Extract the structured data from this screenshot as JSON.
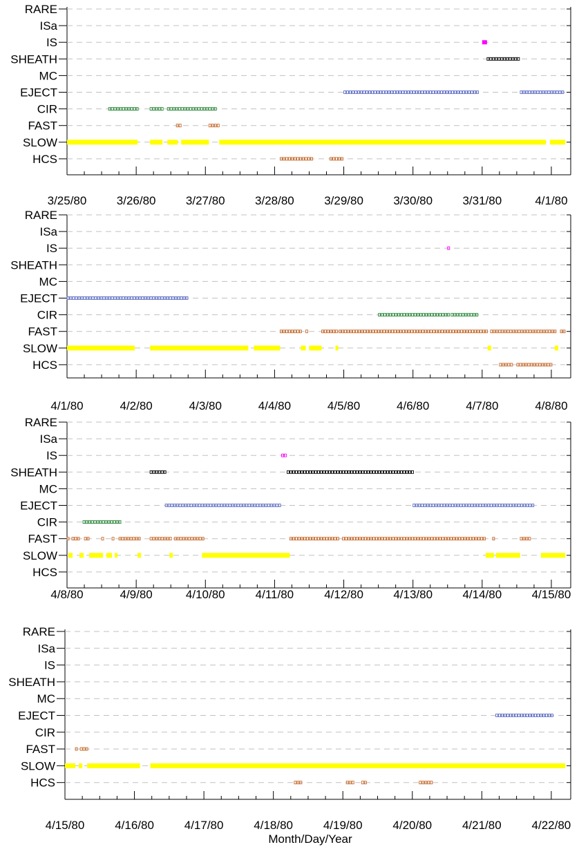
{
  "chart_data": {
    "type": "event-timeline",
    "xlabel": "Month/Day/Year",
    "categories": [
      "RARE",
      "ISa",
      "IS",
      "SHEATH",
      "MC",
      "EJECT",
      "CIR",
      "FAST",
      "SLOW",
      "HCS"
    ],
    "colors": {
      "RARE": "#000000",
      "ISa": "#000000",
      "IS": "#ff00ff",
      "SHEATH": "#000000",
      "MC": "#000000",
      "EJECT": "#6070c8",
      "CIR": "#2a8a3a",
      "FAST": "#c86a2a",
      "SLOW": "#ffff00",
      "HCS": "#c86a2a"
    },
    "grid": "dashed horizontal",
    "panels": [
      {
        "x_ticks": [
          "3/25/80",
          "3/26/80",
          "3/27/80",
          "3/28/80",
          "3/29/80",
          "3/30/80",
          "3/31/80",
          "4/1/80"
        ],
        "day_range": [
          0,
          7.2
        ],
        "events": [
          {
            "category": "IS",
            "intervals": [
              [
                6.0,
                6.07
              ]
            ]
          },
          {
            "category": "SHEATH",
            "intervals": [
              [
                6.07,
                6.55
              ]
            ]
          },
          {
            "category": "EJECT",
            "intervals": [
              [
                4.0,
                5.97
              ],
              [
                6.55,
                7.2
              ]
            ]
          },
          {
            "category": "CIR",
            "intervals": [
              [
                0.6,
                1.02
              ],
              [
                1.2,
                1.38
              ],
              [
                1.45,
                2.15
              ]
            ]
          },
          {
            "category": "FAST",
            "intervals": [
              [
                1.58,
                1.66
              ],
              [
                2.05,
                2.22
              ]
            ]
          },
          {
            "category": "SLOW",
            "intervals": [
              [
                0.0,
                1.02
              ],
              [
                1.2,
                1.38
              ],
              [
                1.45,
                1.6
              ],
              [
                1.65,
                2.05
              ],
              [
                2.2,
                6.92
              ],
              [
                6.98,
                7.2
              ]
            ]
          },
          {
            "category": "HCS",
            "intervals": [
              [
                3.08,
                3.57
              ],
              [
                3.8,
                4.0
              ]
            ]
          }
        ]
      },
      {
        "x_ticks": [
          "4/1/80",
          "4/2/80",
          "4/3/80",
          "4/4/80",
          "4/5/80",
          "4/6/80",
          "4/7/80",
          "4/8/80"
        ],
        "day_range": [
          0,
          7.2
        ],
        "events": [
          {
            "category": "IS",
            "intervals": [
              [
                5.5,
                5.55
              ]
            ]
          },
          {
            "category": "EJECT",
            "intervals": [
              [
                0.0,
                1.75
              ]
            ]
          },
          {
            "category": "CIR",
            "intervals": [
              [
                4.5,
                5.52
              ],
              [
                5.55,
                5.95
              ]
            ]
          },
          {
            "category": "FAST",
            "intervals": [
              [
                3.08,
                3.38
              ],
              [
                3.45,
                3.5
              ],
              [
                3.68,
                3.9
              ],
              [
                3.93,
                6.1
              ],
              [
                6.12,
                7.08
              ],
              [
                7.13,
                7.2
              ]
            ]
          },
          {
            "category": "SLOW",
            "intervals": [
              [
                0.0,
                0.98
              ],
              [
                1.2,
                2.62
              ],
              [
                2.7,
                3.08
              ],
              [
                3.38,
                3.45
              ],
              [
                3.5,
                3.68
              ],
              [
                3.88,
                3.92
              ],
              [
                6.08,
                6.13
              ],
              [
                7.05,
                7.1
              ]
            ]
          },
          {
            "category": "HCS",
            "intervals": [
              [
                6.25,
                6.45
              ],
              [
                6.5,
                7.0
              ]
            ]
          }
        ]
      },
      {
        "x_ticks": [
          "4/8/80",
          "4/9/80",
          "4/10/80",
          "4/11/80",
          "4/12/80",
          "4/13/80",
          "4/14/80",
          "4/15/80"
        ],
        "day_range": [
          0,
          7.2
        ],
        "events": [
          {
            "category": "IS",
            "intervals": [
              [
                3.1,
                3.17
              ]
            ]
          },
          {
            "category": "SHEATH",
            "intervals": [
              [
                1.2,
                1.42
              ],
              [
                3.18,
                5.0
              ]
            ]
          },
          {
            "category": "EJECT",
            "intervals": [
              [
                1.42,
                3.1
              ],
              [
                5.0,
                6.75
              ]
            ]
          },
          {
            "category": "CIR",
            "intervals": [
              [
                0.23,
                0.78
              ]
            ]
          },
          {
            "category": "FAST",
            "intervals": [
              [
                0.0,
                0.05
              ],
              [
                0.07,
                0.2
              ],
              [
                0.25,
                0.32
              ],
              [
                0.5,
                0.55
              ],
              [
                0.65,
                0.7
              ],
              [
                0.75,
                1.05
              ],
              [
                1.2,
                1.5
              ],
              [
                1.55,
                1.97
              ],
              [
                3.22,
                3.93
              ],
              [
                3.98,
                6.05
              ],
              [
                6.15,
                6.2
              ],
              [
                6.55,
                6.7
              ]
            ]
          },
          {
            "category": "SLOW",
            "intervals": [
              [
                0.02,
                0.08
              ],
              [
                0.18,
                0.24
              ],
              [
                0.32,
                0.52
              ],
              [
                0.57,
                0.65
              ],
              [
                0.69,
                0.73
              ],
              [
                1.02,
                1.07
              ],
              [
                1.48,
                1.53
              ],
              [
                1.95,
                3.22
              ],
              [
                6.05,
                6.17
              ],
              [
                6.2,
                6.55
              ],
              [
                6.85,
                7.2
              ]
            ]
          }
        ]
      },
      {
        "x_ticks": [
          "4/15/80",
          "4/16/80",
          "4/17/80",
          "4/18/80",
          "4/19/80",
          "4/20/80",
          "4/21/80",
          "4/22/80"
        ],
        "day_range": [
          0,
          7.2
        ],
        "events": [
          {
            "category": "EJECT",
            "intervals": [
              [
                6.2,
                7.05
              ]
            ]
          },
          {
            "category": "FAST",
            "intervals": [
              [
                0.15,
                0.2
              ],
              [
                0.22,
                0.32
              ]
            ]
          },
          {
            "category": "SLOW",
            "intervals": [
              [
                0.0,
                0.15
              ],
              [
                0.2,
                0.25
              ],
              [
                0.32,
                1.08
              ],
              [
                1.23,
                7.2
              ]
            ]
          },
          {
            "category": "HCS",
            "intervals": [
              [
                3.3,
                3.4
              ],
              [
                4.05,
                4.15
              ],
              [
                4.27,
                4.35
              ],
              [
                5.1,
                5.28
              ]
            ]
          }
        ]
      }
    ]
  }
}
